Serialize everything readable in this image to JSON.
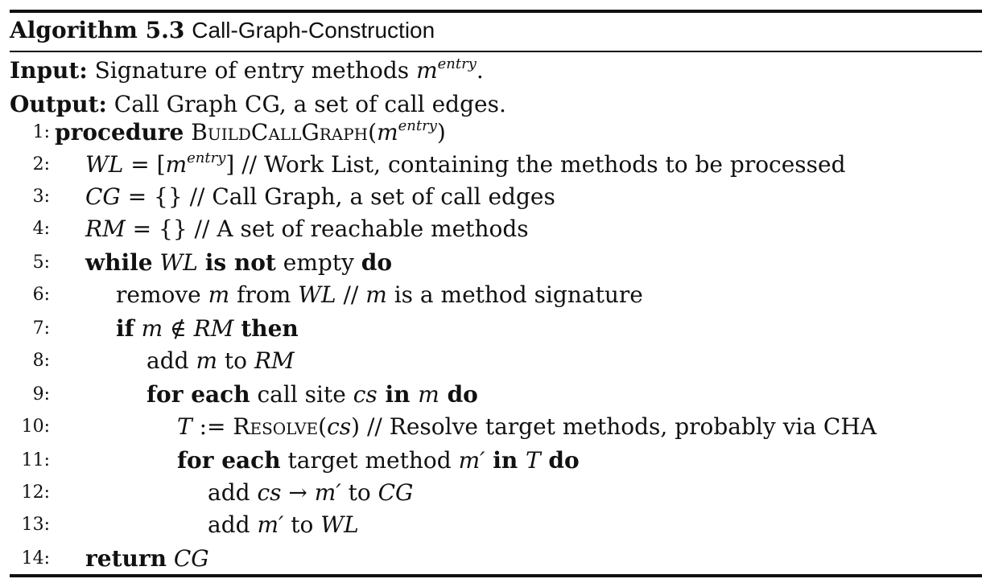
{
  "caption": {
    "label": "Algorithm 5.3",
    "name": "Call-Graph-Construction"
  },
  "io": {
    "input_label": "Input:",
    "input_text_a": "Signature of entry methods",
    "input_var": "m",
    "input_sup": "entry",
    "input_text_b": ".",
    "output_label": "Output:",
    "output_text": "Call Graph CG, a set of call edges."
  },
  "lines": [
    {
      "n": "1:"
    },
    {
      "n": "2:"
    },
    {
      "n": "3:"
    },
    {
      "n": "4:"
    },
    {
      "n": "5:"
    },
    {
      "n": "6:"
    },
    {
      "n": "7:"
    },
    {
      "n": "8:"
    },
    {
      "n": "9:"
    },
    {
      "n": "10:"
    },
    {
      "n": "11:"
    },
    {
      "n": "12:"
    },
    {
      "n": "13:"
    },
    {
      "n": "14:"
    }
  ],
  "code": {
    "l1": {
      "kw": "procedure",
      "fn": "BuildCallGraph",
      "open": "(",
      "var": "m",
      "sup": "entry",
      "close": ")"
    },
    "l2": {
      "lhs": "WL",
      "eq": " = [",
      "var": "m",
      "sup": "entry",
      "close": "]",
      "comment": " // Work List, containing the methods to be processed"
    },
    "l3": {
      "lhs": "CG",
      "rhs": " = {}",
      "comment": " // Call Graph, a set of call edges"
    },
    "l4": {
      "lhs": "RM",
      "rhs": " = {}",
      "comment": " // A set of reachable methods"
    },
    "l5": {
      "kw1": "while",
      "var": " WL ",
      "kw2": "is not",
      "text": " empty ",
      "kw3": "do"
    },
    "l6": {
      "t1": "remove ",
      "v1": "m",
      "t2": " from ",
      "v2": "WL",
      "t3": " // ",
      "v3": "m",
      "t4": " is a method signature"
    },
    "l7": {
      "kw1": "if",
      "v1": " m ∉ RM ",
      "kw2": "then"
    },
    "l8": {
      "t1": "add ",
      "v1": "m",
      "t2": " to ",
      "v2": "RM"
    },
    "l9": {
      "kw1": "for each",
      "t1": " call site ",
      "v1": "cs",
      "kw2": " in ",
      "v2": "m",
      "kw3": " do"
    },
    "l10": {
      "v1": "T",
      "t1": " := ",
      "fn": "Resolve",
      "t2": "(",
      "v2": "cs",
      "t3": ")",
      "comment": " // Resolve target methods, probably via CHA"
    },
    "l11": {
      "kw1": "for each",
      "t1": " target method ",
      "v1": "m′",
      "kw2": " in ",
      "v2": "T",
      "kw3": " do"
    },
    "l12": {
      "t1": "add ",
      "v1": "cs → m′",
      "t2": " to ",
      "v2": "CG"
    },
    "l13": {
      "t1": "add ",
      "v1": "m′",
      "t2": " to ",
      "v2": "WL"
    },
    "l14": {
      "kw": "return",
      "v1": " CG"
    }
  }
}
